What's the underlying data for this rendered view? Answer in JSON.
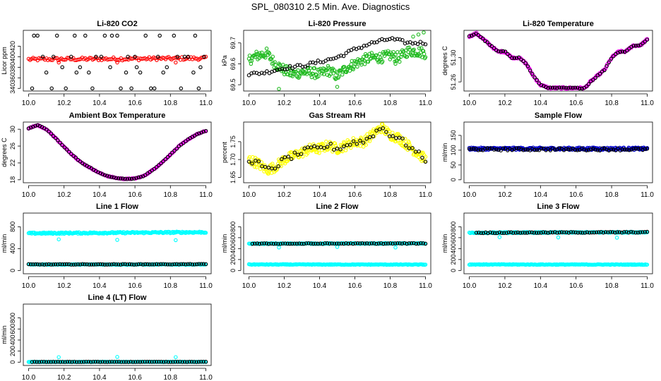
{
  "figure_title": "SPL_080310  2.5 Min. Ave. Diagnostics",
  "chart_data": [
    {
      "type": "scatter",
      "title": "Li-820 CO2",
      "ylabel": "Licor ppm",
      "xlabel": "",
      "xlim": [
        9.97,
        11.03
      ],
      "ylim": [
        335,
        450
      ],
      "xticks": [
        "10.0",
        "10.2",
        "10.4",
        "10.6",
        "10.8",
        "11.0"
      ],
      "yticks": [
        "340",
        "360",
        "380",
        "400",
        "420"
      ],
      "series": [
        {
          "name": "main",
          "color": "#ff0000",
          "style": "band",
          "x": [
            10.0,
            11.0
          ],
          "y": [
            395,
            397
          ],
          "n": 120,
          "jitter": 3
        },
        {
          "name": "outliers",
          "color": "#ff0000",
          "style": "points",
          "x": [
            10.17,
            10.5,
            10.83
          ],
          "y": [
            389,
            389,
            389
          ]
        },
        {
          "name": "reference",
          "color": "#000000",
          "style": "points",
          "x": [
            10.02,
            10.08,
            10.13,
            10.16,
            10.19,
            10.24,
            10.29,
            10.32,
            10.36,
            10.41,
            10.46,
            10.5,
            10.52,
            10.56,
            10.61,
            10.66,
            10.69,
            10.73,
            10.78,
            10.82,
            10.86,
            10.9,
            10.94,
            10.97,
            10.99,
            10.05,
            10.1,
            10.21,
            10.27,
            10.38,
            10.43,
            10.55,
            10.6,
            10.71,
            10.76,
            10.88,
            10.93,
            10.03,
            10.14,
            10.26,
            10.34,
            10.47,
            10.58,
            10.63,
            10.74,
            10.84,
            10.96
          ],
          "y": [
            340,
            400,
            340,
            440,
            380,
            400,
            380,
            440,
            340,
            400,
            380,
            440,
            340,
            400,
            380,
            440,
            340,
            400,
            380,
            440,
            340,
            400,
            440,
            380,
            400,
            440,
            370,
            340,
            370,
            400,
            440,
            370,
            400,
            340,
            370,
            400,
            370,
            440,
            400,
            440,
            370,
            440,
            340,
            370,
            440,
            400,
            340
          ]
        }
      ]
    },
    {
      "type": "scatter",
      "title": "Li-820 Pressure",
      "ylabel": "kPa",
      "xlabel": "",
      "xlim": [
        9.97,
        11.03
      ],
      "ylim": [
        69.47,
        69.76
      ],
      "xticks": [
        "10.0",
        "10.2",
        "10.4",
        "10.6",
        "10.8",
        "11.0"
      ],
      "yticks": [
        "69.5",
        "69.6",
        "69.7"
      ],
      "series": [
        {
          "name": "green",
          "color": "#22bb22",
          "style": "path",
          "x": [
            10.0,
            10.05,
            10.1,
            10.15,
            10.2,
            10.25,
            10.3,
            10.35,
            10.4,
            10.45,
            10.5,
            10.55,
            10.6,
            10.65,
            10.7,
            10.75,
            10.8,
            10.85,
            10.9,
            10.95,
            11.0
          ],
          "y": [
            69.62,
            69.64,
            69.65,
            69.6,
            69.57,
            69.55,
            69.56,
            69.56,
            69.55,
            69.57,
            69.54,
            69.58,
            69.6,
            69.62,
            69.63,
            69.63,
            69.64,
            69.63,
            69.66,
            69.66,
            69.65
          ],
          "n": 260,
          "jitter": 0.025
        },
        {
          "name": "green-outliers",
          "color": "#22bb22",
          "style": "points",
          "x": [
            10.17,
            10.5,
            10.83,
            10.96,
            10.99,
            10.93
          ],
          "y": [
            69.48,
            69.49,
            69.6,
            69.74,
            69.75,
            69.73
          ]
        },
        {
          "name": "black",
          "color": "#000000",
          "style": "path",
          "x": [
            10.0,
            10.1,
            10.2,
            10.3,
            10.4,
            10.5,
            10.6,
            10.7,
            10.8,
            10.9,
            11.0
          ],
          "y": [
            69.55,
            69.56,
            69.58,
            69.59,
            69.61,
            69.63,
            69.67,
            69.7,
            69.72,
            69.7,
            69.7
          ],
          "n": 70,
          "jitter": 0.008
        }
      ]
    },
    {
      "type": "scatter",
      "title": "Li-820 Temperature",
      "ylabel": "degrees C",
      "xlabel": "",
      "xlim": [
        9.97,
        11.03
      ],
      "ylim": [
        51.245,
        51.345
      ],
      "xticks": [
        "10.0",
        "10.2",
        "10.4",
        "10.6",
        "10.8",
        "11.0"
      ],
      "yticks": [
        "51.26",
        "51.30"
      ],
      "series": [
        {
          "name": "magenta",
          "color": "#ff00ff",
          "style": "path",
          "x": [
            10.0,
            10.04,
            10.08,
            10.12,
            10.16,
            10.2,
            10.24,
            10.28,
            10.32,
            10.36,
            10.4,
            10.45,
            10.5,
            10.55,
            10.6,
            10.65,
            10.68,
            10.72,
            10.76,
            10.8,
            10.84,
            10.88,
            10.92,
            10.96,
            11.0
          ],
          "y": [
            51.335,
            51.34,
            51.33,
            51.32,
            51.31,
            51.31,
            51.3,
            51.3,
            51.29,
            51.27,
            51.255,
            51.25,
            51.25,
            51.25,
            51.25,
            51.25,
            51.26,
            51.27,
            51.28,
            51.3,
            51.31,
            51.31,
            51.32,
            51.32,
            51.33
          ],
          "n": 200,
          "jitter": 0.0015
        },
        {
          "name": "black",
          "color": "#000000",
          "style": "path",
          "x": [
            10.0,
            10.04,
            10.08,
            10.12,
            10.16,
            10.2,
            10.24,
            10.28,
            10.32,
            10.36,
            10.4,
            10.45,
            10.5,
            10.55,
            10.6,
            10.65,
            10.68,
            10.72,
            10.76,
            10.8,
            10.84,
            10.88,
            10.92,
            10.96,
            11.0
          ],
          "y": [
            51.335,
            51.34,
            51.33,
            51.32,
            51.31,
            51.31,
            51.3,
            51.3,
            51.29,
            51.27,
            51.255,
            51.25,
            51.25,
            51.25,
            51.25,
            51.25,
            51.26,
            51.27,
            51.28,
            51.3,
            51.31,
            51.31,
            51.32,
            51.32,
            51.33
          ],
          "n": 80,
          "jitter": 0.0008
        }
      ]
    },
    {
      "type": "scatter",
      "title": "Ambient Box Temperature",
      "ylabel": "degrees C",
      "xlabel": "",
      "xlim": [
        9.97,
        11.03
      ],
      "ylim": [
        17.3,
        31.7
      ],
      "xticks": [
        "10.0",
        "10.2",
        "10.4",
        "10.6",
        "10.8",
        "11.0"
      ],
      "yticks": [
        "18",
        "22",
        "26",
        "30"
      ],
      "series": [
        {
          "name": "magenta",
          "color": "#ff00ff",
          "style": "path",
          "x": [
            10.0,
            10.05,
            10.1,
            10.15,
            10.2,
            10.25,
            10.3,
            10.35,
            10.4,
            10.45,
            10.5,
            10.55,
            10.6,
            10.65,
            10.7,
            10.75,
            10.8,
            10.85,
            10.9,
            10.95,
            11.0
          ],
          "y": [
            30.2,
            31.0,
            30.0,
            28.0,
            25.8,
            23.8,
            22.0,
            20.8,
            19.6,
            18.8,
            18.4,
            18.2,
            18.3,
            18.9,
            20.3,
            22.0,
            24.0,
            26.0,
            27.6,
            28.8,
            29.6
          ],
          "n": 200,
          "jitter": 0.12
        },
        {
          "name": "black",
          "color": "#000000",
          "style": "path",
          "x": [
            10.0,
            10.05,
            10.1,
            10.15,
            10.2,
            10.25,
            10.3,
            10.35,
            10.4,
            10.45,
            10.5,
            10.55,
            10.6,
            10.65,
            10.7,
            10.75,
            10.8,
            10.85,
            10.9,
            10.95,
            11.0
          ],
          "y": [
            30.2,
            31.0,
            30.0,
            28.0,
            25.8,
            23.8,
            22.0,
            20.8,
            19.6,
            18.8,
            18.4,
            18.2,
            18.3,
            18.9,
            20.3,
            22.0,
            24.0,
            26.0,
            27.6,
            28.8,
            29.6
          ],
          "n": 80,
          "jitter": 0.05
        }
      ]
    },
    {
      "type": "scatter",
      "title": "Gas Stream RH",
      "ylabel": "percent",
      "xlabel": "",
      "xlim": [
        9.97,
        11.03
      ],
      "ylim": [
        1.635,
        1.805
      ],
      "xticks": [
        "10.0",
        "10.2",
        "10.4",
        "10.6",
        "10.8",
        "11.0"
      ],
      "yticks": [
        "1.65",
        "1.70",
        "1.75"
      ],
      "series": [
        {
          "name": "yellow",
          "color": "#ffff00",
          "style": "path",
          "x": [
            10.0,
            10.05,
            10.1,
            10.15,
            10.2,
            10.25,
            10.3,
            10.35,
            10.4,
            10.45,
            10.5,
            10.55,
            10.6,
            10.65,
            10.7,
            10.75,
            10.8,
            10.85,
            10.9,
            10.95,
            11.0
          ],
          "y": [
            1.7,
            1.69,
            1.67,
            1.68,
            1.7,
            1.71,
            1.72,
            1.73,
            1.73,
            1.74,
            1.73,
            1.74,
            1.75,
            1.75,
            1.77,
            1.79,
            1.77,
            1.76,
            1.74,
            1.72,
            1.7
          ],
          "n": 280,
          "jitter": 0.014
        },
        {
          "name": "black",
          "color": "#000000",
          "style": "path",
          "x": [
            10.0,
            10.05,
            10.1,
            10.15,
            10.2,
            10.25,
            10.3,
            10.35,
            10.4,
            10.45,
            10.5,
            10.55,
            10.6,
            10.65,
            10.7,
            10.75,
            10.8,
            10.85,
            10.9,
            10.95,
            11.0
          ],
          "y": [
            1.7,
            1.69,
            1.67,
            1.68,
            1.7,
            1.71,
            1.72,
            1.73,
            1.73,
            1.74,
            1.73,
            1.74,
            1.75,
            1.75,
            1.77,
            1.79,
            1.77,
            1.76,
            1.74,
            1.72,
            1.7
          ],
          "n": 55,
          "jitter": 0.008
        }
      ]
    },
    {
      "type": "scatter",
      "title": "Sample Flow",
      "ylabel": "ml/min",
      "xlabel": "",
      "xlim": [
        9.97,
        11.03
      ],
      "ylim": [
        -10,
        195
      ],
      "xticks": [
        "10.0",
        "10.2",
        "10.4",
        "10.6",
        "10.8",
        "11.0"
      ],
      "yticks": [
        "0",
        "50",
        "100",
        "150"
      ],
      "series": [
        {
          "name": "blue",
          "color": "#0000cc",
          "style": "band",
          "x": [
            10.0,
            11.0
          ],
          "y": [
            105,
            105
          ],
          "n": 260,
          "jitter": 4
        },
        {
          "name": "black",
          "color": "#000000",
          "style": "band",
          "x": [
            10.0,
            11.0
          ],
          "y": [
            103,
            103
          ],
          "n": 80,
          "jitter": 4
        }
      ]
    },
    {
      "type": "scatter",
      "title": "Line 1 Flow",
      "ylabel": "ml/min",
      "xlabel": "",
      "xlim": [
        9.97,
        11.03
      ],
      "ylim": [
        -60,
        1050
      ],
      "xticks": [
        "10.0",
        "10.2",
        "10.4",
        "10.6",
        "10.8",
        "11.0"
      ],
      "yticks": [
        "0",
        "400",
        "800"
      ],
      "series": [
        {
          "name": "cyan-high",
          "color": "#00ffff",
          "style": "band",
          "x": [
            10.0,
            11.0
          ],
          "y": [
            680,
            700
          ],
          "n": 220,
          "jitter": 14
        },
        {
          "name": "cyan-outliers",
          "color": "#00ffff",
          "style": "points",
          "x": [
            10.17,
            10.5,
            10.83
          ],
          "y": [
            570,
            560,
            555
          ]
        },
        {
          "name": "cyan-low",
          "color": "#00ffff",
          "style": "band",
          "x": [
            10.0,
            11.0
          ],
          "y": [
            110,
            110
          ],
          "n": 200,
          "jitter": 6
        },
        {
          "name": "black",
          "color": "#000000",
          "style": "band",
          "x": [
            10.0,
            11.0
          ],
          "y": [
            110,
            115
          ],
          "n": 80,
          "jitter": 5
        }
      ]
    },
    {
      "type": "scatter",
      "title": "Line 2 Flow",
      "ylabel": "ml/min",
      "xlabel": "",
      "xlim": [
        9.97,
        11.03
      ],
      "ylim": [
        -60,
        1050
      ],
      "xticks": [
        "10.0",
        "10.2",
        "10.4",
        "10.6",
        "10.8",
        "11.0"
      ],
      "yticks": [
        "0",
        "200",
        "400",
        "600",
        "800"
      ],
      "series": [
        {
          "name": "cyan-high",
          "color": "#00ffff",
          "style": "band",
          "x": [
            10.0,
            11.0
          ],
          "y": [
            490,
            495
          ],
          "n": 200,
          "jitter": 8
        },
        {
          "name": "cyan-outliers",
          "color": "#00ffff",
          "style": "points",
          "x": [
            10.17,
            10.5,
            10.83
          ],
          "y": [
            420,
            430,
            420
          ]
        },
        {
          "name": "cyan-low",
          "color": "#00ffff",
          "style": "band",
          "x": [
            10.0,
            11.0
          ],
          "y": [
            110,
            108
          ],
          "n": 200,
          "jitter": 6
        },
        {
          "name": "black",
          "color": "#000000",
          "style": "band",
          "x": [
            10.02,
            11.0
          ],
          "y": [
            490,
            495
          ],
          "n": 75,
          "jitter": 6
        }
      ]
    },
    {
      "type": "scatter",
      "title": "Line 3 Flow",
      "ylabel": "ml/min",
      "xlabel": "",
      "xlim": [
        9.97,
        11.03
      ],
      "ylim": [
        -60,
        1050
      ],
      "xticks": [
        "10.0",
        "10.2",
        "10.4",
        "10.6",
        "10.8",
        "11.0"
      ],
      "yticks": [
        "0",
        "200",
        "400",
        "600",
        "800"
      ],
      "series": [
        {
          "name": "cyan-high",
          "color": "#00ffff",
          "style": "band",
          "x": [
            10.0,
            11.0
          ],
          "y": [
            690,
            700
          ],
          "n": 200,
          "jitter": 10
        },
        {
          "name": "cyan-outliers",
          "color": "#00ffff",
          "style": "points",
          "x": [
            10.17,
            10.5,
            10.83
          ],
          "y": [
            610,
            605,
            600
          ]
        },
        {
          "name": "cyan-low",
          "color": "#00ffff",
          "style": "band",
          "x": [
            10.0,
            11.0
          ],
          "y": [
            110,
            108
          ],
          "n": 200,
          "jitter": 6
        },
        {
          "name": "black",
          "color": "#000000",
          "style": "band",
          "x": [
            10.04,
            11.0
          ],
          "y": [
            690,
            700
          ],
          "n": 75,
          "jitter": 8
        }
      ]
    },
    {
      "type": "scatter",
      "title": "Line 4 (LT) Flow",
      "ylabel": "ml/min",
      "xlabel": "",
      "xlim": [
        9.97,
        11.03
      ],
      "ylim": [
        -60,
        1050
      ],
      "xticks": [
        "10.0",
        "10.2",
        "10.4",
        "10.6",
        "10.8",
        "11.0"
      ],
      "yticks": [
        "0",
        "200",
        "400",
        "600",
        "800"
      ],
      "series": [
        {
          "name": "cyan",
          "color": "#00ffff",
          "style": "band",
          "x": [
            10.0,
            11.0
          ],
          "y": [
            5,
            5
          ],
          "n": 200,
          "jitter": 3
        },
        {
          "name": "cyan-outliers",
          "color": "#00ffff",
          "style": "points",
          "x": [
            10.17,
            10.5,
            10.83
          ],
          "y": [
            90,
            95,
            90
          ]
        },
        {
          "name": "black",
          "color": "#000000",
          "style": "band",
          "x": [
            10.02,
            11.0
          ],
          "y": [
            5,
            5
          ],
          "n": 75,
          "jitter": 3
        }
      ]
    }
  ]
}
